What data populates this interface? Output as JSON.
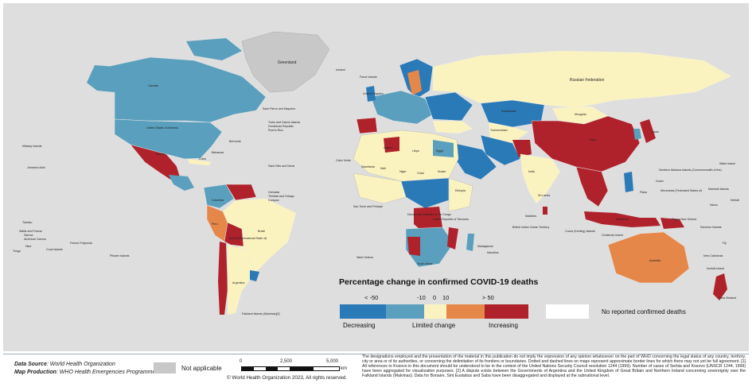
{
  "colors": {
    "ocean": "#dedede",
    "decreasing_strong": "#2b7ab8",
    "decreasing": "#5a9fbd",
    "limited": "#fbf3bf",
    "increasing": "#e6874a",
    "increasing_strong": "#b0222b",
    "no_reported": "#ffffff",
    "not_applicable": "#c8c8c8"
  },
  "legend": {
    "title": "Percentage change in confirmed COVID-19 deaths",
    "ticks": [
      "< -50",
      "-10",
      "0",
      "10",
      "> 50"
    ],
    "captions": {
      "decreasing": "Decreasing",
      "limited": "Limited change",
      "increasing": "Increasing"
    },
    "no_reported": "No reported confirmed deaths"
  },
  "map_labels": {
    "greenland": "Greenland",
    "iceland": "Iceland",
    "canada": "Canada",
    "usa": "United States of America",
    "mexico": "Mexico",
    "cuba": "Cuba",
    "bermuda": "Bermuda",
    "bahamas": "Bahamas",
    "st_pierre": "Saint Pierre and Miquelon",
    "caribbean_1": "Turks and Caicos Islands",
    "caribbean_2": "Dominican Republic",
    "caribbean_3": "Puerto Rico",
    "caribbean_4": "Saint Kitts and Nevis",
    "caribbean_5": "Grenada",
    "caribbean_6": "Trinidad and Tobago",
    "caribbean_7": "Curaçao",
    "brazil": "Brazil",
    "argentina": "Argentina",
    "bolivia": "Bolivia (Plurinational State of)",
    "peru": "Peru",
    "colombia": "Colombia",
    "falklands": "Falkland Islands (Malvinas)[2]",
    "russia": "Russian Federation",
    "china": "China",
    "india": "India",
    "australia": "Australia",
    "new_zealand": "New Zealand",
    "indonesia": "Indonesia",
    "japan": "Japan",
    "mongolia": "Mongolia",
    "kazakhstan": "Kazakhstan",
    "turkmenistan": "Turkmenistan",
    "algeria": "Algeria",
    "libya": "Libya",
    "egypt": "Egypt",
    "mali": "Mali",
    "niger": "Niger",
    "chad": "Chad",
    "sudan": "Sudan",
    "ethiopia": "Ethiopia",
    "dr_congo": "Democratic Republic of the Congo",
    "tanzania": "United Republic of Tanzania",
    "south_africa": "South Africa",
    "madagascar": "Madagascar",
    "sao_tome": "Sao Tome and Principe",
    "saint_helena": "Saint Helena",
    "cabo_verde": "Cabo Verde",
    "mauritania": "Mauritania",
    "cocos": "Cocos (Keeling) Islands",
    "christmas": "Christmas Island",
    "papua": "Papua New Guinea",
    "solomon": "Solomon Islands",
    "fiji": "Fiji",
    "new_caledonia": "New Caledonia",
    "norfolk": "Norfolk Island",
    "micronesia": "Micronesia (Federated States of)",
    "marshall": "Marshall Islands",
    "nauru": "Nauru",
    "kiribati": "Kiribati",
    "wake": "Wake Island",
    "guam": "Guam",
    "northern_mariana": "Northern Mariana Islands (Commonwealth of the)",
    "palau": "Palau",
    "hawaii": "Johnston Atoll",
    "midway": "Midway Islands",
    "tokelau": "Tokelau",
    "samoa": "Samoa",
    "american_samoa": "American Samoa",
    "wallis": "Wallis and Futuna",
    "tonga": "Tonga",
    "niue": "Niue",
    "cook": "Cook Islands",
    "french_polynesia": "French Polynesia",
    "pitcairn": "Pitcairn Islands",
    "faroe": "Faroe Islands",
    "uk": "United Kingdom",
    "maldives": "Maldives",
    "sri_lanka": "Sri Lanka",
    "british_indian": "British Indian Ocean Territory",
    "mauritius": "Mauritius"
  },
  "footer": {
    "data_source_label": "Data Source",
    "data_source": ": World Health Organization",
    "map_production_label": "Map Production",
    "map_production": ": WHO Health Emergencies Programme",
    "not_applicable": "Not applicable",
    "scale_ticks": [
      "0",
      "2,500",
      "5,000"
    ],
    "scale_unit": "km",
    "copyright": "© World Health Organization  2023,  All rights reserved.",
    "disclaimer": "The designations employed and the presentation of the material in this publication do not imply the expression of any opinion whatsoever on the part of WHO concerning the legal status of any country, territory, city or area or of its authorities, or concerning the delimitation of its frontiers or boundaries. Dotted and dashed lines on maps represent approximate border lines for which there may not yet be full agreement. [1] All references to Kosovo in this document should be understood to be in the context of the United Nations Security Council resolution 1244 (1999). Number of cases of Serbia and Kosovo (UNSCR 1244, 1999) have been aggregated for visualization purposes. [2] A dispute exists between the Governments of Argentina and the United Kingdom of Great Britain and Northern Ireland concerning sovereignty over the Falkland Islands (Malvinas). Data for Bonaire, Sint Eustatius and Saba have been disaggregated and displayed at the subnational level."
  }
}
